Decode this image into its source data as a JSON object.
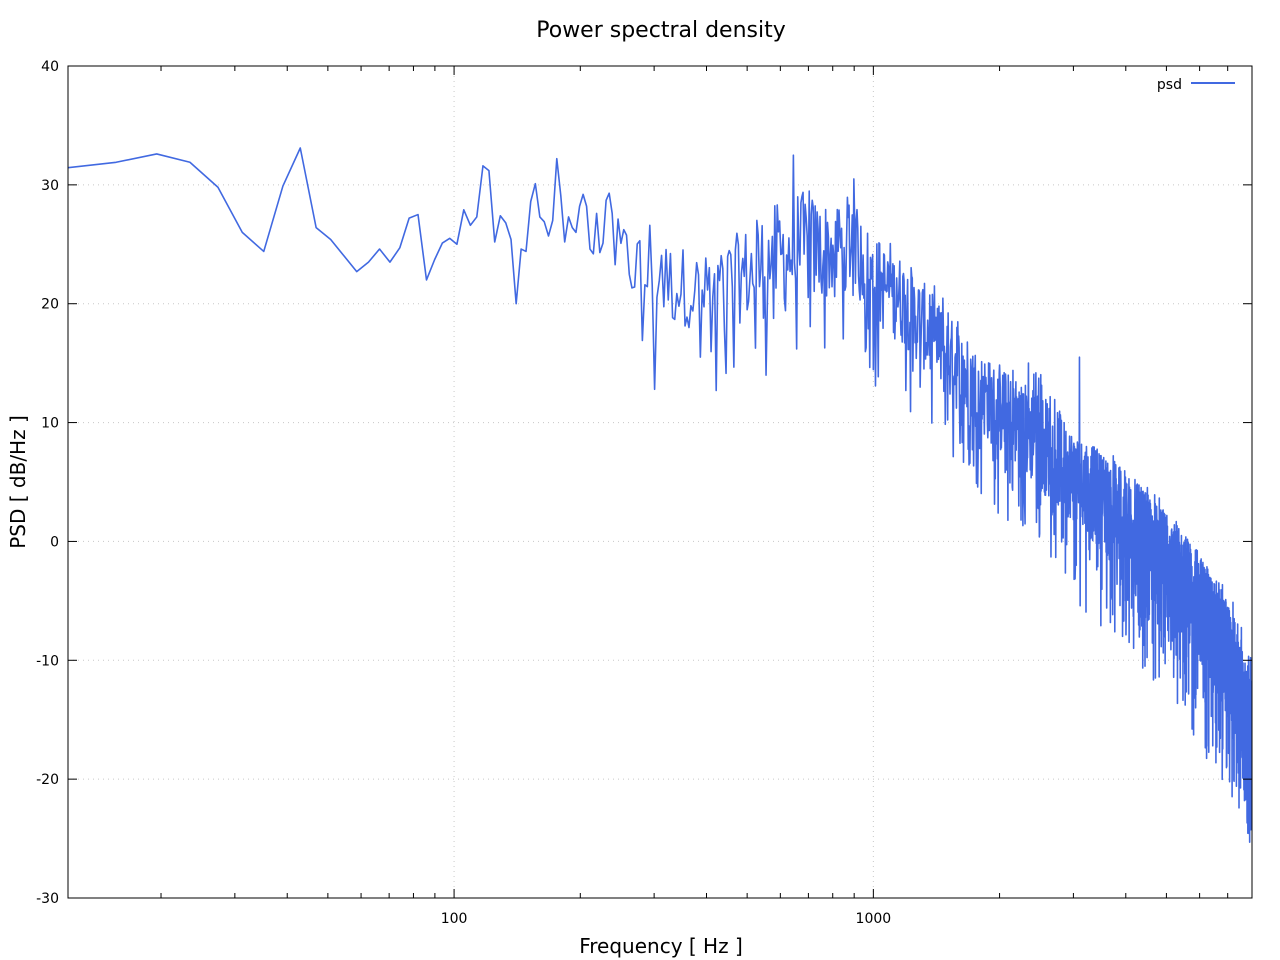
{
  "chart_data": {
    "type": "line",
    "title": "Power spectral density",
    "xlabel": "Frequency [ Hz ]",
    "ylabel": "PSD [ dB/Hz ]",
    "xscale": "log",
    "xlim": [
      12,
      8000
    ],
    "ylim": [
      -30,
      40
    ],
    "grid": true,
    "legend_position": "top-right",
    "x_ticks": [
      {
        "value": 100,
        "label": "100"
      },
      {
        "value": 1000,
        "label": "1000"
      }
    ],
    "y_ticks": [
      {
        "value": 40,
        "label": "40"
      },
      {
        "value": 30,
        "label": "30"
      },
      {
        "value": 20,
        "label": "20"
      },
      {
        "value": 10,
        "label": "10"
      },
      {
        "value": 0,
        "label": "0"
      },
      {
        "value": -10,
        "label": "-10"
      },
      {
        "value": -20,
        "label": "-20"
      },
      {
        "value": -30,
        "label": "-30"
      }
    ],
    "series": [
      {
        "name": "psd",
        "color": "#4169e1",
        "frequency_step_hz": 3.90625,
        "x": [
          11.72,
          15.63,
          19.53,
          23.44,
          27.34,
          31.25,
          35.16,
          39.06,
          42.97,
          46.88,
          50.78,
          54.69,
          58.59,
          62.5,
          66.41,
          70.31,
          74.22,
          78.13,
          82.03,
          85.94,
          89.84,
          93.75,
          97.66,
          101.56,
          105.47,
          109.38,
          113.28,
          117.19,
          121.09,
          125.0,
          128.91,
          132.81,
          136.72,
          140.63,
          144.53,
          148.44,
          152.34,
          156.25,
          160.16,
          164.06,
          167.97,
          171.88,
          175.78,
          179.69,
          183.59,
          187.5,
          191.41,
          195.31,
          199.22,
          203.13,
          207.03,
          210.94,
          214.84,
          218.75,
          222.66,
          226.56,
          230.47,
          234.38,
          238.28
        ],
        "y": [
          31.4,
          31.9,
          32.6,
          31.9,
          29.8,
          26.0,
          24.4,
          29.9,
          33.1,
          26.4,
          25.4,
          24.0,
          22.7,
          23.5,
          24.6,
          23.5,
          24.7,
          27.2,
          27.5,
          22.0,
          23.7,
          25.1,
          25.5,
          25.0,
          27.9,
          26.6,
          27.3,
          31.6,
          31.2,
          25.2,
          27.4,
          26.8,
          25.4,
          20.0,
          24.6,
          24.4,
          28.6,
          30.1,
          27.3,
          26.9,
          25.7,
          27.0,
          32.2,
          29.1,
          25.2,
          27.3,
          26.4,
          26.0,
          28.2,
          29.2,
          28.2,
          24.6,
          24.2,
          27.6,
          24.3,
          25.1,
          28.7,
          29.3,
          27.6
        ],
        "high_freq_envelope": {
          "description": "Dense spectrum above 240 Hz: mean level (dB/Hz) and min/max spread at anchor frequencies",
          "freq": [
            240,
            300,
            400,
            500,
            650,
            800,
            900,
            1000,
            1200,
            1500,
            1800,
            2000,
            2500,
            3000,
            4000,
            5000,
            6000,
            7000,
            8000
          ],
          "mean": [
            24.5,
            22.0,
            21.0,
            22.5,
            24.5,
            24.5,
            25.0,
            22.0,
            20.0,
            15.5,
            12.5,
            11.0,
            8.5,
            5.5,
            1.5,
            -2.0,
            -5.5,
            -10.0,
            -16.0
          ],
          "min": [
            19.1,
            12.8,
            12.7,
            13.0,
            13.5,
            14.5,
            18.0,
            13.0,
            10.5,
            7.0,
            4.0,
            2.0,
            0.0,
            -5.0,
            -9.0,
            -13.0,
            -17.5,
            -21.0,
            -25.3
          ],
          "max": [
            29.3,
            27.0,
            24.0,
            27.8,
            32.5,
            29.0,
            30.5,
            26.5,
            24.0,
            20.5,
            16.5,
            15.0,
            15.5,
            9.0,
            7.0,
            3.0,
            -1.0,
            -4.0,
            -9.0
          ]
        },
        "notable_points": [
          {
            "x": 300,
            "y": 12.8
          },
          {
            "x": 420,
            "y": 12.7
          },
          {
            "x": 645,
            "y": 32.5
          },
          {
            "x": 900,
            "y": 30.5
          },
          {
            "x": 1400,
            "y": 21.5
          },
          {
            "x": 2250,
            "y": 1.8
          },
          {
            "x": 3100,
            "y": 15.5
          },
          {
            "x": 7900,
            "y": -25.3
          }
        ]
      }
    ]
  }
}
